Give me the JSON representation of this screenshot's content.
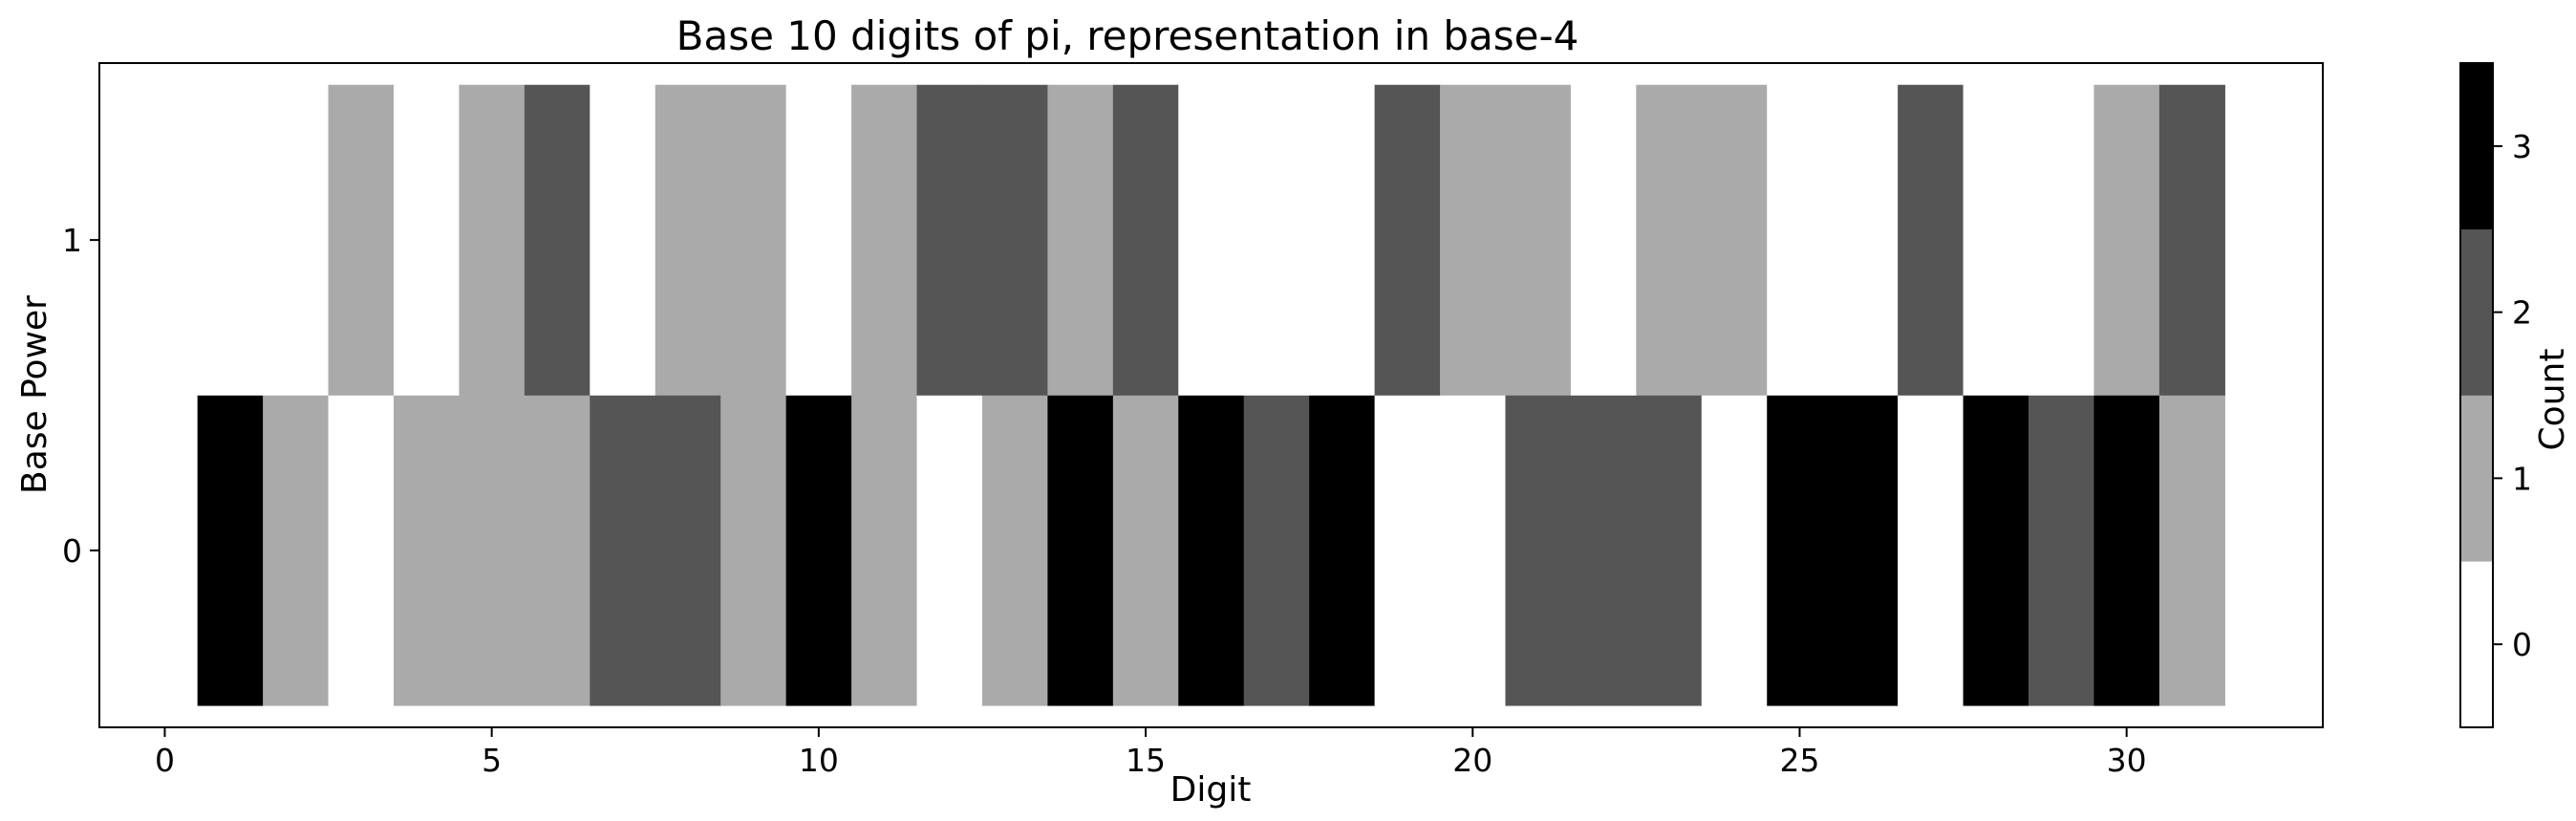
{
  "chart_data": {
    "type": "heatmap",
    "title": "Base 10 digits of pi, representation in base-4",
    "xlabel": "Digit",
    "ylabel": "Base Power",
    "xlim": [
      -1,
      33
    ],
    "ylim": [
      -0.57,
      1.57
    ],
    "x_ticks": [
      0,
      5,
      10,
      15,
      20,
      25,
      30
    ],
    "y_ticks": [
      0,
      1
    ],
    "x": [
      1,
      2,
      3,
      4,
      5,
      6,
      7,
      8,
      9,
      10,
      11,
      12,
      13,
      14,
      15,
      16,
      17,
      18,
      19,
      20,
      21,
      22,
      23,
      24,
      25,
      26,
      27,
      28,
      29,
      30,
      31
    ],
    "rows": [
      {
        "base_power": 0,
        "values": [
          3,
          1,
          0,
          1,
          1,
          1,
          2,
          2,
          1,
          3,
          1,
          0,
          1,
          3,
          1,
          3,
          2,
          3,
          0,
          0,
          2,
          2,
          2,
          0,
          3,
          3,
          0,
          3,
          2,
          3,
          1
        ]
      },
      {
        "base_power": 1,
        "values": [
          0,
          0,
          1,
          0,
          1,
          2,
          0,
          1,
          1,
          0,
          1,
          2,
          2,
          1,
          2,
          0,
          0,
          0,
          2,
          1,
          1,
          0,
          1,
          1,
          0,
          0,
          2,
          0,
          0,
          1,
          2
        ]
      }
    ],
    "colorbar": {
      "label": "Count",
      "ticks": [
        0,
        1,
        2,
        3
      ],
      "range": [
        -0.5,
        3.5
      ],
      "colors": [
        "#ffffff",
        "#aaaaaa",
        "#555555",
        "#000000"
      ]
    }
  }
}
